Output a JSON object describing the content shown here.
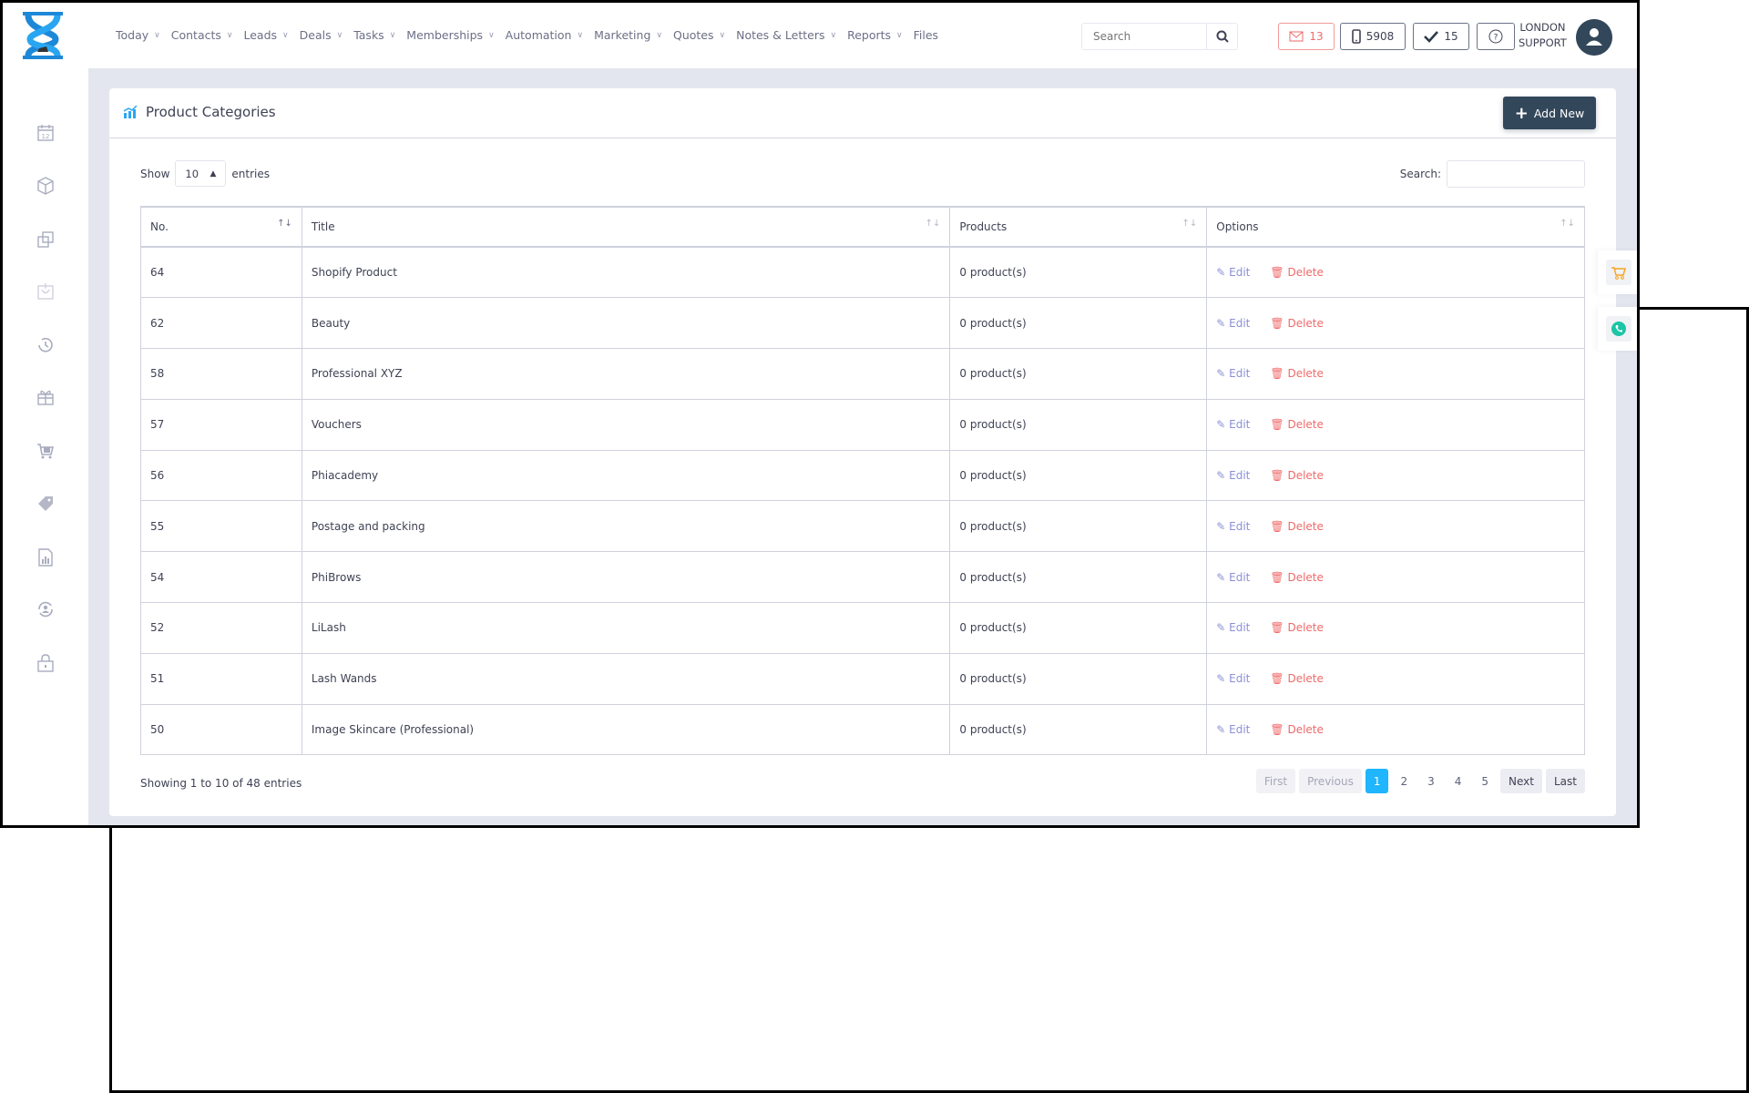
{
  "nav": [
    "Today",
    "Contacts",
    "Leads",
    "Deals",
    "Tasks",
    "Memberships",
    "Automation",
    "Marketing",
    "Quotes",
    "Notes & Letters",
    "Reports",
    "Files"
  ],
  "header": {
    "search_placeholder": "Search",
    "mail_count": "13",
    "phone_count": "5908",
    "tasks_count": "15",
    "user_line1": "LONDON",
    "user_line2": "SUPPORT"
  },
  "sidebar": {
    "icons": [
      "calendar-icon",
      "box-icon",
      "layers-icon",
      "basket-icon",
      "history-icon",
      "gift-icon",
      "cart-icon",
      "tag-icon",
      "report-icon",
      "user-sync-icon",
      "lock-icon"
    ]
  },
  "page": {
    "title": "Product Categories",
    "add_new": "Add New"
  },
  "table": {
    "show_label": "Show",
    "entries_label": "entries",
    "page_size": "10",
    "search_label": "Search:",
    "columns": [
      "No.",
      "Title",
      "Products",
      "Options"
    ],
    "edit_label": "Edit",
    "delete_label": "Delete",
    "rows": [
      {
        "no": "64",
        "title": "Shopify Product",
        "products": "0 product(s)"
      },
      {
        "no": "62",
        "title": "Beauty",
        "products": "0 product(s)"
      },
      {
        "no": "58",
        "title": "Professional XYZ",
        "products": "0 product(s)"
      },
      {
        "no": "57",
        "title": "Vouchers",
        "products": "0 product(s)"
      },
      {
        "no": "56",
        "title": "Phiacademy",
        "products": "0 product(s)"
      },
      {
        "no": "55",
        "title": "Postage and packing",
        "products": "0 product(s)"
      },
      {
        "no": "54",
        "title": "PhiBrows",
        "products": "0 product(s)"
      },
      {
        "no": "52",
        "title": "LiLash",
        "products": "0 product(s)"
      },
      {
        "no": "51",
        "title": "Lash Wands",
        "products": "0 product(s)"
      },
      {
        "no": "50",
        "title": "Image Skincare (Professional)",
        "products": "0 product(s)"
      }
    ],
    "info": "Showing 1 to 10 of 48 entries"
  },
  "pagination": {
    "first": "First",
    "previous": "Previous",
    "pages": [
      "1",
      "2",
      "3",
      "4",
      "5"
    ],
    "current": "1",
    "next": "Next",
    "last": "Last"
  },
  "colors": {
    "primary": "#33475b",
    "accent": "#1fb5ff",
    "danger": "#f06a6a",
    "edit": "#8b90d6"
  }
}
